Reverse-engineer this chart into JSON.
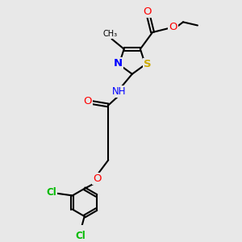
{
  "bg_color": "#e8e8e8",
  "atom_colors": {
    "C": "#000000",
    "N": "#0000ff",
    "O": "#ff0000",
    "S": "#ccaa00",
    "Cl": "#00bb00"
  },
  "bond_color": "#000000",
  "bond_width": 1.5,
  "font_size": 8.5,
  "fig_size": [
    3.0,
    3.0
  ],
  "dpi": 100
}
